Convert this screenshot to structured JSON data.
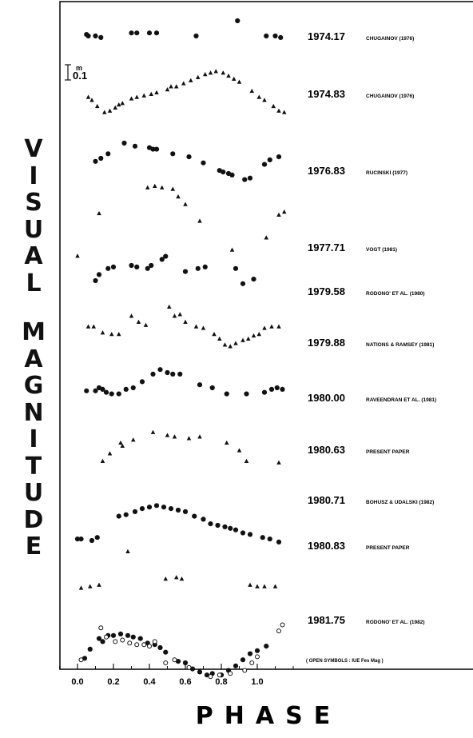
{
  "chart_data": {
    "type": "scatter",
    "xlabel": "PHASE",
    "ylabel": "VISUAL MAGNITUDE",
    "xlim": [
      -0.1,
      1.2
    ],
    "xticks": [
      "0.0",
      "0.2",
      "0.4",
      "0.6",
      "0.8",
      "1.0"
    ],
    "scale_bar_label": "0.1",
    "scale_bar_unit": "m",
    "footnote": "( OPEN SYMBOLS : IUE  Fes Mag )",
    "series": [
      {
        "epoch": "1974.17",
        "source": "CHUGAINOV   (1976)",
        "marker": "circle",
        "offset": 0,
        "points": [
          [
            0.05,
            0.9
          ],
          [
            0.06,
            1.0
          ],
          [
            0.1,
            1.0
          ],
          [
            0.13,
            1.1
          ],
          [
            0.3,
            0.8
          ],
          [
            0.33,
            0.8
          ],
          [
            0.4,
            0.8
          ],
          [
            0.44,
            0.8
          ],
          [
            0.66,
            1.0
          ],
          [
            0.89,
            0.0
          ],
          [
            1.05,
            1.0
          ],
          [
            1.1,
            1.0
          ],
          [
            1.13,
            1.1
          ]
        ]
      },
      {
        "epoch": "1974.83",
        "source": "CHUGAINOV   (1976)",
        "marker": "triangle",
        "offset": 1,
        "points": [
          [
            0.06,
            1.0
          ],
          [
            0.08,
            1.2
          ],
          [
            0.11,
            1.6
          ],
          [
            0.15,
            2.0
          ],
          [
            0.18,
            1.9
          ],
          [
            0.21,
            1.7
          ],
          [
            0.23,
            1.5
          ],
          [
            0.25,
            1.4
          ],
          [
            0.3,
            1.1
          ],
          [
            0.33,
            1.0
          ],
          [
            0.37,
            0.9
          ],
          [
            0.41,
            0.8
          ],
          [
            0.44,
            0.7
          ],
          [
            0.5,
            0.5
          ],
          [
            0.52,
            0.3
          ],
          [
            0.55,
            0.3
          ],
          [
            0.59,
            0.1
          ],
          [
            0.63,
            -0.1
          ],
          [
            0.67,
            -0.3
          ],
          [
            0.71,
            -0.5
          ],
          [
            0.74,
            -0.6
          ],
          [
            0.77,
            -0.7
          ],
          [
            0.81,
            -0.6
          ],
          [
            0.84,
            -0.4
          ],
          [
            0.87,
            -0.2
          ],
          [
            0.9,
            0.0
          ],
          [
            0.97,
            0.6
          ],
          [
            1.01,
            1.0
          ],
          [
            1.04,
            1.2
          ],
          [
            1.09,
            1.6
          ],
          [
            1.12,
            1.9
          ],
          [
            1.15,
            2.0
          ]
        ]
      },
      {
        "epoch": "1976.83",
        "source": "RUCINSKI   (1977)",
        "marker": "circle",
        "offset": 2,
        "points": [
          [
            0.1,
            1.2
          ],
          [
            0.13,
            1.0
          ],
          [
            0.17,
            0.7
          ],
          [
            0.26,
            0.0
          ],
          [
            0.32,
            0.2
          ],
          [
            0.4,
            0.3
          ],
          [
            0.42,
            0.4
          ],
          [
            0.44,
            0.4
          ],
          [
            0.53,
            0.7
          ],
          [
            0.62,
            0.9
          ],
          [
            0.7,
            1.3
          ],
          [
            0.79,
            1.8
          ],
          [
            0.81,
            1.9
          ],
          [
            0.84,
            2.0
          ],
          [
            0.86,
            2.1
          ],
          [
            0.93,
            2.4
          ],
          [
            0.96,
            2.3
          ],
          [
            1.04,
            1.4
          ],
          [
            1.07,
            1.1
          ],
          [
            1.12,
            0.9
          ]
        ]
      },
      {
        "epoch": "1977.71",
        "source": "VOGT   (1981)",
        "marker": "triangle",
        "offset": 3,
        "points": [
          [
            0.0,
            3.4
          ],
          [
            0.12,
            0.6
          ],
          [
            0.39,
            -1.1
          ],
          [
            0.43,
            -1.2
          ],
          [
            0.47,
            -1.1
          ],
          [
            0.53,
            -1.0
          ],
          [
            0.56,
            -0.5
          ],
          [
            0.6,
            0.0
          ],
          [
            0.68,
            1.1
          ],
          [
            0.86,
            3.0
          ],
          [
            1.05,
            2.2
          ],
          [
            1.12,
            0.7
          ],
          [
            1.15,
            0.5
          ]
        ]
      },
      {
        "epoch": "1979.58",
        "source": "RODONO'  ET AL.   (1980)",
        "marker": "circle",
        "offset": 4,
        "points": [
          [
            0.1,
            1.0
          ],
          [
            0.12,
            0.6
          ],
          [
            0.17,
            0.2
          ],
          [
            0.2,
            0.1
          ],
          [
            0.3,
            0.0
          ],
          [
            0.33,
            0.1
          ],
          [
            0.39,
            0.2
          ],
          [
            0.41,
            0.0
          ],
          [
            0.47,
            -0.4
          ],
          [
            0.49,
            -0.6
          ],
          [
            0.6,
            0.4
          ],
          [
            0.67,
            0.2
          ],
          [
            0.71,
            0.1
          ],
          [
            0.88,
            0.2
          ],
          [
            0.92,
            1.2
          ],
          [
            0.98,
            0.9
          ]
        ]
      },
      {
        "epoch": "1979.88",
        "source": "NATIONS & RAMSEY  (1981)",
        "marker": "triangle",
        "offset": 5,
        "points": [
          [
            0.06,
            0.0
          ],
          [
            0.09,
            0.0
          ],
          [
            0.14,
            0.4
          ],
          [
            0.19,
            0.5
          ],
          [
            0.23,
            0.5
          ],
          [
            0.3,
            -0.7
          ],
          [
            0.34,
            -0.3
          ],
          [
            0.38,
            -0.1
          ],
          [
            0.51,
            -1.3
          ],
          [
            0.54,
            -0.7
          ],
          [
            0.57,
            -0.8
          ],
          [
            0.6,
            -0.3
          ],
          [
            0.66,
            0.0
          ],
          [
            0.7,
            0.1
          ],
          [
            0.76,
            0.5
          ],
          [
            0.79,
            0.8
          ],
          [
            0.82,
            1.2
          ],
          [
            0.85,
            1.3
          ],
          [
            0.88,
            1.1
          ],
          [
            0.92,
            0.9
          ],
          [
            0.95,
            0.8
          ],
          [
            0.98,
            0.6
          ],
          [
            1.01,
            0.5
          ],
          [
            1.04,
            0.1
          ],
          [
            1.08,
            0.0
          ],
          [
            1.12,
            0.0
          ]
        ]
      },
      {
        "epoch": "1980.00",
        "source": "RAVEENDRAN  ET AL.  (1981)",
        "marker": "circle",
        "offset": 6,
        "points": [
          [
            0.05,
            0.2
          ],
          [
            0.1,
            0.2
          ],
          [
            0.12,
            0.0
          ],
          [
            0.14,
            0.1
          ],
          [
            0.16,
            0.3
          ],
          [
            0.19,
            0.4
          ],
          [
            0.23,
            0.4
          ],
          [
            0.27,
            0.1
          ],
          [
            0.31,
            0.0
          ],
          [
            0.36,
            -0.4
          ],
          [
            0.42,
            -0.9
          ],
          [
            0.46,
            -1.2
          ],
          [
            0.5,
            -1.0
          ],
          [
            0.53,
            -0.9
          ],
          [
            0.57,
            -0.9
          ],
          [
            0.68,
            -0.2
          ],
          [
            0.75,
            0.0
          ],
          [
            0.83,
            0.4
          ],
          [
            0.94,
            0.4
          ],
          [
            1.04,
            0.3
          ],
          [
            1.08,
            0.1
          ],
          [
            1.11,
            0.0
          ],
          [
            1.14,
            0.1
          ]
        ]
      },
      {
        "epoch": "1980.63",
        "source": "PRESENT PAPER",
        "marker": "triangle",
        "offset": 7,
        "points": [
          [
            0.14,
            0.8
          ],
          [
            0.18,
            0.3
          ],
          [
            0.24,
            -0.4
          ],
          [
            0.25,
            -0.2
          ],
          [
            0.31,
            -0.6
          ],
          [
            0.42,
            -1.1
          ],
          [
            0.5,
            -0.9
          ],
          [
            0.54,
            -0.8
          ],
          [
            0.62,
            -0.7
          ],
          [
            0.68,
            -0.8
          ],
          [
            0.83,
            -0.4
          ],
          [
            0.9,
            0.1
          ],
          [
            0.94,
            0.8
          ],
          [
            1.12,
            0.9
          ]
        ]
      },
      {
        "epoch": "1980.71",
        "source": "BOHUSZ & UDALSKI  (1982)",
        "marker": "circle",
        "offset": 8,
        "points": [
          [
            0.0,
            1.9
          ],
          [
            0.02,
            1.9
          ],
          [
            0.08,
            2.0
          ],
          [
            0.11,
            1.8
          ],
          [
            0.23,
            0.4
          ],
          [
            0.27,
            0.3
          ],
          [
            0.32,
            0.1
          ],
          [
            0.36,
            -0.1
          ],
          [
            0.4,
            -0.2
          ],
          [
            0.44,
            -0.3
          ],
          [
            0.48,
            -0.2
          ],
          [
            0.52,
            -0.1
          ],
          [
            0.56,
            0.0
          ],
          [
            0.6,
            0.1
          ],
          [
            0.65,
            0.4
          ],
          [
            0.7,
            0.6
          ],
          [
            0.74,
            0.9
          ],
          [
            0.78,
            1.0
          ],
          [
            0.82,
            1.1
          ],
          [
            0.85,
            1.2
          ],
          [
            0.88,
            1.3
          ],
          [
            0.92,
            1.5
          ],
          [
            0.96,
            1.6
          ],
          [
            1.03,
            1.8
          ],
          [
            1.07,
            1.9
          ],
          [
            1.12,
            2.1
          ]
        ]
      },
      {
        "epoch": "1980.83",
        "source": "PRESENT PAPER",
        "marker": "triangle",
        "offset": 9,
        "points": [
          [
            0.02,
            1.1
          ],
          [
            0.07,
            1.0
          ],
          [
            0.12,
            0.9
          ],
          [
            0.28,
            -1.3
          ],
          [
            0.49,
            0.5
          ],
          [
            0.55,
            0.4
          ],
          [
            0.58,
            0.5
          ],
          [
            0.96,
            0.9
          ],
          [
            1.0,
            1.0
          ],
          [
            1.04,
            1.0
          ],
          [
            1.1,
            1.0
          ]
        ]
      },
      {
        "epoch": "1981.75",
        "source": "RODONO'  ET AL.   (1982)",
        "marker": "circle",
        "offset": 10,
        "points": [
          [
            0.04,
            1.7
          ],
          [
            0.07,
            1.1
          ],
          [
            0.12,
            0.4
          ],
          [
            0.14,
            0.6
          ],
          [
            0.17,
            0.2
          ],
          [
            0.2,
            0.2
          ],
          [
            0.24,
            0.1
          ],
          [
            0.28,
            0.2
          ],
          [
            0.31,
            0.3
          ],
          [
            0.35,
            0.4
          ],
          [
            0.39,
            0.7
          ],
          [
            0.43,
            0.8
          ],
          [
            0.46,
            1.0
          ],
          [
            0.49,
            1.3
          ],
          [
            0.56,
            1.9
          ],
          [
            0.6,
            2.0
          ],
          [
            0.64,
            2.4
          ],
          [
            0.68,
            2.6
          ],
          [
            0.72,
            2.8
          ],
          [
            0.75,
            2.7
          ],
          [
            0.8,
            2.8
          ],
          [
            0.84,
            2.5
          ],
          [
            0.88,
            2.2
          ],
          [
            0.92,
            1.8
          ],
          [
            0.96,
            1.4
          ],
          [
            1.0,
            1.2
          ],
          [
            1.05,
            0.9
          ]
        ]
      },
      {
        "epoch": "1981.75 (IUE)",
        "source": "",
        "marker": "open-circle",
        "offset": 10,
        "points": [
          [
            0.02,
            1.8
          ],
          [
            0.13,
            -0.3
          ],
          [
            0.16,
            0.3
          ],
          [
            0.21,
            0.6
          ],
          [
            0.25,
            0.5
          ],
          [
            0.29,
            0.7
          ],
          [
            0.33,
            0.8
          ],
          [
            0.37,
            0.8
          ],
          [
            0.4,
            0.9
          ],
          [
            0.43,
            0.6
          ],
          [
            0.49,
            2.0
          ],
          [
            0.54,
            1.8
          ],
          [
            0.62,
            2.3
          ],
          [
            0.74,
            2.9
          ],
          [
            0.79,
            2.8
          ],
          [
            0.85,
            2.7
          ],
          [
            0.93,
            2.5
          ],
          [
            0.97,
            2.0
          ],
          [
            1.0,
            1.6
          ],
          [
            1.12,
            -0.1
          ],
          [
            1.14,
            -0.5
          ]
        ]
      }
    ]
  }
}
